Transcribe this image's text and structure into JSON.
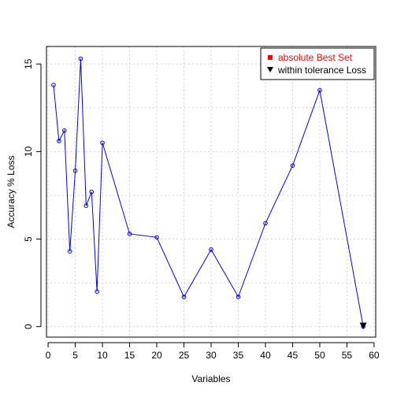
{
  "chart_data": {
    "type": "line",
    "xlabel": "Variables",
    "ylabel": "Accuracy % Loss",
    "xlim": [
      -0.3,
      60.3
    ],
    "ylim": [
      -0.6,
      16.0
    ],
    "x_ticks": [
      0,
      5,
      10,
      15,
      20,
      25,
      30,
      35,
      40,
      45,
      50,
      55,
      60
    ],
    "y_ticks": [
      0,
      5,
      10,
      15
    ],
    "grid": true,
    "legend_position": "top-right",
    "colors": {
      "line": "#0000ff",
      "best": "#ff0000",
      "tolerance": "#000000",
      "grid": "#d3d3d3"
    },
    "series": [
      {
        "x": [
          1,
          2,
          3,
          4,
          5,
          6,
          7,
          8,
          9,
          10,
          15,
          20,
          25,
          30,
          35,
          40,
          45,
          50,
          58
        ],
        "values": [
          13.8,
          10.6,
          11.2,
          4.3,
          8.9,
          15.3,
          6.9,
          7.7,
          2.0,
          10.5,
          5.3,
          5.1,
          1.7,
          4.4,
          1.7,
          5.9,
          9.2,
          13.5,
          0.0
        ]
      }
    ],
    "markers": [
      {
        "label": "absolute Best Set",
        "symbol": "square",
        "color": "#ff0000"
      },
      {
        "label": "within tolerance Loss",
        "symbol": "triangle-down",
        "color": "#000000",
        "x": 58,
        "y": 0.0
      }
    ]
  }
}
